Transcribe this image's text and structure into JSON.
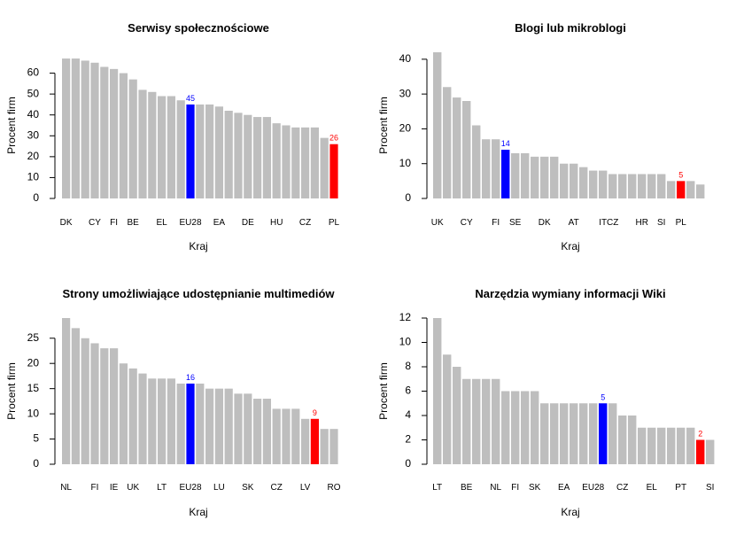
{
  "colors": {
    "default": "#bebebe",
    "eu": "#0000ff",
    "pl": "#ff0000"
  },
  "chart_data": [
    {
      "type": "bar",
      "title": "Serwisy społecznościowe",
      "xlabel": "Kraj",
      "ylabel": "Procent firm",
      "ylim": [
        0,
        70
      ],
      "yticks": [
        0,
        10,
        20,
        30,
        40,
        50,
        60
      ],
      "grid": false,
      "values": [
        67,
        67,
        66,
        65,
        63,
        62,
        60,
        57,
        52,
        51,
        49,
        49,
        47,
        45,
        45,
        45,
        44,
        42,
        41,
        40,
        39,
        39,
        36,
        35,
        34,
        34,
        34,
        29,
        26
      ],
      "highlight": {
        "eu": 13,
        "pl": 28
      },
      "tick_labels": [
        {
          "i": 0,
          "label": "DK"
        },
        {
          "i": 3,
          "label": "CY"
        },
        {
          "i": 5,
          "label": "FI"
        },
        {
          "i": 7,
          "label": "BE"
        },
        {
          "i": 10,
          "label": "EL"
        },
        {
          "i": 13,
          "label": "EU28"
        },
        {
          "i": 16,
          "label": "EA"
        },
        {
          "i": 19,
          "label": "DE"
        },
        {
          "i": 22,
          "label": "HU"
        },
        {
          "i": 25,
          "label": "CZ"
        },
        {
          "i": 28,
          "label": "PL"
        }
      ],
      "data_labels": [
        {
          "i": 13,
          "text": "45",
          "kind": "eu"
        },
        {
          "i": 28,
          "text": "26",
          "kind": "pl"
        }
      ]
    },
    {
      "type": "bar",
      "title": "Blogi lub mikroblogi",
      "xlabel": "Kraj",
      "ylabel": "Procent firm",
      "ylim": [
        0,
        42
      ],
      "yticks": [
        0,
        10,
        20,
        30,
        40
      ],
      "grid": false,
      "values": [
        42,
        32,
        29,
        28,
        21,
        17,
        17,
        14,
        13,
        13,
        12,
        12,
        12,
        10,
        10,
        9,
        8,
        8,
        7,
        7,
        7,
        7,
        7,
        7,
        5,
        5,
        5,
        4
      ],
      "highlight": {
        "eu": 7,
        "pl": 25
      },
      "tick_labels": [
        {
          "i": 0,
          "label": "UK"
        },
        {
          "i": 3,
          "label": "CY"
        },
        {
          "i": 6,
          "label": "FI"
        },
        {
          "i": 8,
          "label": "SE"
        },
        {
          "i": 11,
          "label": "DK"
        },
        {
          "i": 14,
          "label": "AT"
        },
        {
          "i": 17,
          "label": "IT"
        },
        {
          "i": 18,
          "label": "CZ"
        },
        {
          "i": 21,
          "label": "HR"
        },
        {
          "i": 23,
          "label": "SI"
        },
        {
          "i": 25,
          "label": "PL"
        }
      ],
      "data_labels": [
        {
          "i": 7,
          "text": "14",
          "kind": "eu"
        },
        {
          "i": 25,
          "text": "5",
          "kind": "pl"
        }
      ]
    },
    {
      "type": "bar",
      "title": "Strony umożliwiające udostępnianie multimediów",
      "xlabel": "Kraj",
      "ylabel": "Procent firm",
      "ylim": [
        0,
        29
      ],
      "yticks": [
        0,
        5,
        10,
        15,
        20,
        25
      ],
      "grid": false,
      "values": [
        29,
        27,
        25,
        24,
        23,
        23,
        20,
        19,
        18,
        17,
        17,
        17,
        16,
        16,
        16,
        15,
        15,
        15,
        14,
        14,
        13,
        13,
        11,
        11,
        11,
        9,
        9,
        7,
        7
      ],
      "highlight": {
        "eu": 13,
        "pl": 26
      },
      "tick_labels": [
        {
          "i": 0,
          "label": "NL"
        },
        {
          "i": 3,
          "label": "FI"
        },
        {
          "i": 5,
          "label": "IE"
        },
        {
          "i": 7,
          "label": "UK"
        },
        {
          "i": 10,
          "label": "LT"
        },
        {
          "i": 13,
          "label": "EU28"
        },
        {
          "i": 16,
          "label": "LU"
        },
        {
          "i": 19,
          "label": "SK"
        },
        {
          "i": 22,
          "label": "CZ"
        },
        {
          "i": 25,
          "label": "LV"
        },
        {
          "i": 28,
          "label": "RO"
        }
      ],
      "data_labels": [
        {
          "i": 13,
          "text": "16",
          "kind": "eu"
        },
        {
          "i": 26,
          "text": "9",
          "kind": "pl"
        }
      ]
    },
    {
      "type": "bar",
      "title": "Narzędzia wymiany informacji Wiki",
      "xlabel": "Kraj",
      "ylabel": "Procent firm",
      "ylim": [
        0,
        12
      ],
      "yticks": [
        0,
        2,
        4,
        6,
        8,
        10,
        12
      ],
      "grid": false,
      "values": [
        12,
        9,
        8,
        7,
        7,
        7,
        7,
        6,
        6,
        6,
        6,
        5,
        5,
        5,
        5,
        5,
        5,
        5,
        5,
        4,
        4,
        3,
        3,
        3,
        3,
        3,
        3,
        2,
        2
      ],
      "highlight": {
        "eu": 17,
        "pl": 27
      },
      "tick_labels": [
        {
          "i": 0,
          "label": "LT"
        },
        {
          "i": 3,
          "label": "BE"
        },
        {
          "i": 6,
          "label": "NL"
        },
        {
          "i": 8,
          "label": "FI"
        },
        {
          "i": 10,
          "label": "SK"
        },
        {
          "i": 13,
          "label": "EA"
        },
        {
          "i": 16,
          "label": "EU28"
        },
        {
          "i": 19,
          "label": "CZ"
        },
        {
          "i": 22,
          "label": "EL"
        },
        {
          "i": 25,
          "label": "PT"
        },
        {
          "i": 28,
          "label": "SI"
        }
      ],
      "data_labels": [
        {
          "i": 17,
          "text": "5",
          "kind": "eu"
        },
        {
          "i": 27,
          "text": "2",
          "kind": "pl"
        }
      ]
    }
  ]
}
